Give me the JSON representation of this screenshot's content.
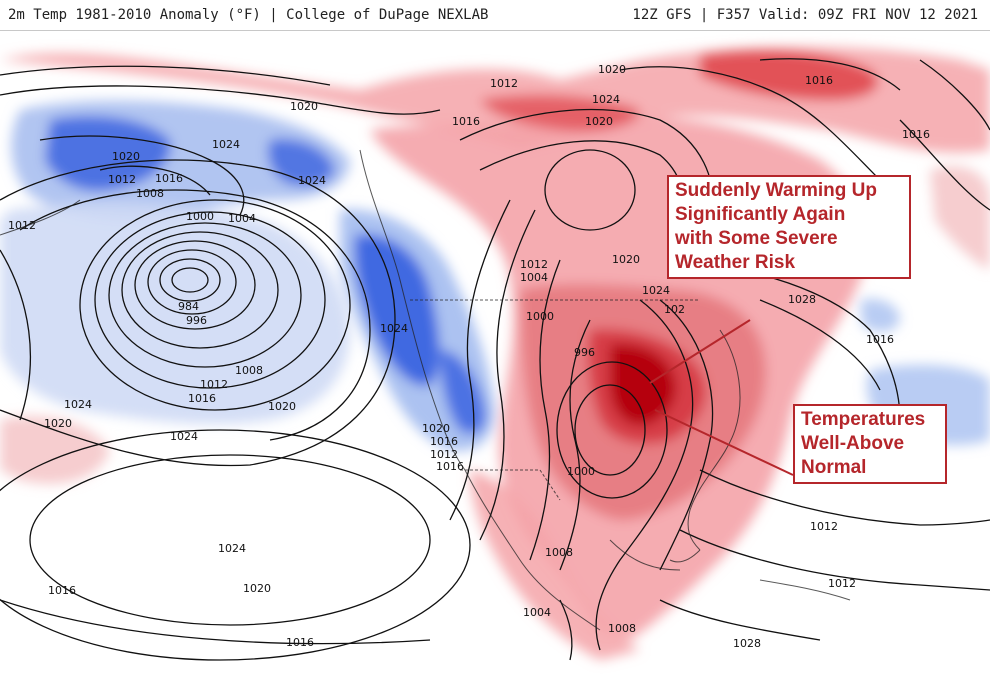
{
  "header": {
    "left_title": "2m Temp 1981-2010 Anomaly (°F) | College of DuPage NEXLAB",
    "right_title": "12Z GFS | F357 Valid: 09Z FRI NOV 12 2021"
  },
  "annotations": {
    "warming": [
      "Suddenly Warming Up",
      "Significantly Again",
      "with Some Severe",
      "Weather Risk"
    ],
    "temps": [
      "Temperatures",
      "Well-Above",
      "Normal"
    ]
  },
  "colors": {
    "warm_anomaly": "#f4a3a8",
    "warm_strong": "#e0474f",
    "warm_extreme": "#b5060f",
    "cold_anomaly": "#a8bff0",
    "cold_strong": "#4169e1",
    "annotation": "#b5262b"
  },
  "pressure_labels": [
    {
      "id": "p1",
      "text": "1020"
    },
    {
      "id": "p2",
      "text": "1024"
    },
    {
      "id": "p3",
      "text": "1020"
    },
    {
      "id": "p4",
      "text": "1012"
    },
    {
      "id": "p5",
      "text": "1016"
    },
    {
      "id": "p6",
      "text": "1008"
    },
    {
      "id": "p7",
      "text": "1012"
    },
    {
      "id": "p8",
      "text": "1000"
    },
    {
      "id": "p9",
      "text": "1004"
    },
    {
      "id": "p10",
      "text": "984"
    },
    {
      "id": "p11",
      "text": "996"
    },
    {
      "id": "p12",
      "text": "1008"
    },
    {
      "id": "p13",
      "text": "1012"
    },
    {
      "id": "p14",
      "text": "1016"
    },
    {
      "id": "p15",
      "text": "1020"
    },
    {
      "id": "p16",
      "text": "1024"
    },
    {
      "id": "p17",
      "text": "1020"
    },
    {
      "id": "p18",
      "text": "1024"
    },
    {
      "id": "p19",
      "text": "1024"
    },
    {
      "id": "p20",
      "text": "1020"
    },
    {
      "id": "p21",
      "text": "1016"
    },
    {
      "id": "p22",
      "text": "1016"
    },
    {
      "id": "p23",
      "text": "1024"
    },
    {
      "id": "p24",
      "text": "1024"
    },
    {
      "id": "p25",
      "text": "1020"
    },
    {
      "id": "p26",
      "text": "1016"
    },
    {
      "id": "p27",
      "text": "1012"
    },
    {
      "id": "p28",
      "text": "1016"
    },
    {
      "id": "p29",
      "text": "1012"
    },
    {
      "id": "p30",
      "text": "1004"
    },
    {
      "id": "p31",
      "text": "1000"
    },
    {
      "id": "p32",
      "text": "996"
    },
    {
      "id": "p33",
      "text": "1000"
    },
    {
      "id": "p34",
      "text": "1008"
    },
    {
      "id": "p35",
      "text": "1004"
    },
    {
      "id": "p36",
      "text": "1008"
    },
    {
      "id": "p37",
      "text": "1028"
    },
    {
      "id": "p38",
      "text": "1020"
    },
    {
      "id": "p39",
      "text": "102"
    },
    {
      "id": "p40",
      "text": "1024"
    },
    {
      "id": "p41",
      "text": "1028"
    },
    {
      "id": "p42",
      "text": "1016"
    },
    {
      "id": "p43",
      "text": "1020"
    },
    {
      "id": "p44",
      "text": "1024"
    },
    {
      "id": "p45",
      "text": "1020"
    },
    {
      "id": "p46",
      "text": "1016"
    },
    {
      "id": "p47",
      "text": "1016"
    },
    {
      "id": "p48",
      "text": "1012"
    },
    {
      "id": "p49",
      "text": "1016"
    },
    {
      "id": "p50",
      "text": "1012"
    },
    {
      "id": "p51",
      "text": "1012"
    }
  ]
}
